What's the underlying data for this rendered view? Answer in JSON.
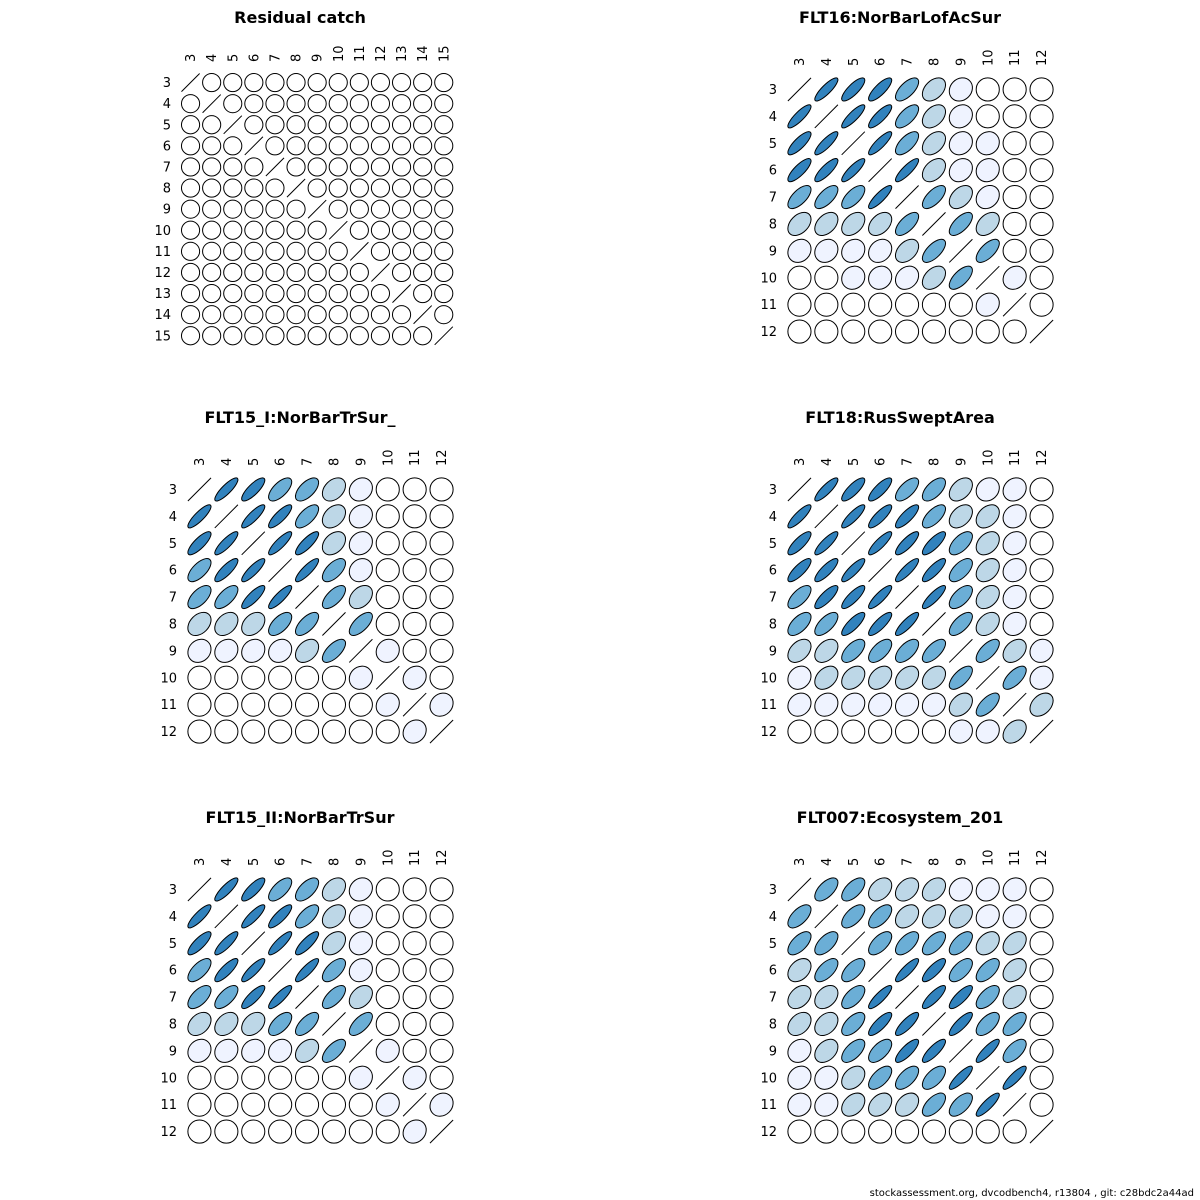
{
  "footer_text": "stockassessment.org, dvcodbench4, r13804 , git: c28bdc2a44ad",
  "palette": [
    "#ffffff",
    "#eff3ff",
    "#bdd7e7",
    "#6baed6",
    "#3182bd"
  ],
  "chart_data": [
    {
      "type": "correlation-ellipse-matrix",
      "title": "Residual catch",
      "labels": [
        "3",
        "4",
        "5",
        "6",
        "7",
        "8",
        "9",
        "10",
        "11",
        "12",
        "13",
        "14",
        "15"
      ],
      "values": [
        [
          1,
          0,
          0,
          0,
          0,
          0,
          0,
          0,
          0,
          0,
          0,
          0,
          0
        ],
        [
          0,
          1,
          0,
          0,
          0,
          0,
          0,
          0,
          0,
          0,
          0,
          0,
          0
        ],
        [
          0,
          0,
          1,
          0,
          0,
          0,
          0,
          0,
          0,
          0,
          0,
          0,
          0
        ],
        [
          0,
          0,
          0,
          1,
          0,
          0,
          0,
          0,
          0,
          0,
          0,
          0,
          0
        ],
        [
          0,
          0,
          0,
          0,
          1,
          0,
          0,
          0,
          0,
          0,
          0,
          0,
          0
        ],
        [
          0,
          0,
          0,
          0,
          0,
          1,
          0,
          0,
          0,
          0,
          0,
          0,
          0
        ],
        [
          0,
          0,
          0,
          0,
          0,
          0,
          1,
          0,
          0,
          0,
          0,
          0,
          0
        ],
        [
          0,
          0,
          0,
          0,
          0,
          0,
          0,
          1,
          0,
          0,
          0,
          0,
          0
        ],
        [
          0,
          0,
          0,
          0,
          0,
          0,
          0,
          0,
          1,
          0,
          0,
          0,
          0
        ],
        [
          0,
          0,
          0,
          0,
          0,
          0,
          0,
          0,
          0,
          1,
          0,
          0,
          0
        ],
        [
          0,
          0,
          0,
          0,
          0,
          0,
          0,
          0,
          0,
          0,
          1,
          0,
          0
        ],
        [
          0,
          0,
          0,
          0,
          0,
          0,
          0,
          0,
          0,
          0,
          0,
          1,
          0
        ],
        [
          0,
          0,
          0,
          0,
          0,
          0,
          0,
          0,
          0,
          0,
          0,
          0,
          1
        ]
      ]
    },
    {
      "type": "correlation-ellipse-matrix",
      "title": "FLT16:NorBarLofAcSur",
      "labels": [
        "3",
        "4",
        "5",
        "6",
        "7",
        "8",
        "9",
        "10",
        "11",
        "12"
      ],
      "values": [
        [
          1,
          0.85,
          0.8,
          0.8,
          0.65,
          0.4,
          0.15,
          0,
          0,
          0
        ],
        [
          0.85,
          1,
          0.85,
          0.82,
          0.65,
          0.4,
          0.15,
          0,
          0,
          0
        ],
        [
          0.8,
          0.85,
          1,
          0.85,
          0.65,
          0.4,
          0.15,
          0.1,
          0,
          0
        ],
        [
          0.8,
          0.82,
          0.85,
          1,
          0.85,
          0.4,
          0.2,
          0.1,
          0,
          0
        ],
        [
          0.65,
          0.65,
          0.65,
          0.85,
          1,
          0.65,
          0.4,
          0.2,
          0,
          0
        ],
        [
          0.4,
          0.4,
          0.4,
          0.4,
          0.65,
          1,
          0.65,
          0.4,
          0,
          0
        ],
        [
          0.15,
          0.15,
          0.15,
          0.2,
          0.4,
          0.65,
          1,
          0.65,
          0,
          0
        ],
        [
          0,
          0,
          0.1,
          0.1,
          0.2,
          0.4,
          0.65,
          1,
          0.15,
          0
        ],
        [
          0,
          0,
          0,
          0,
          0,
          0,
          0,
          0.15,
          1,
          0
        ],
        [
          0,
          0,
          0,
          0,
          0,
          0,
          0,
          0,
          0,
          1
        ]
      ]
    },
    {
      "type": "correlation-ellipse-matrix",
      "title": "FLT15_I:NorBarTrSur_",
      "labels": [
        "3",
        "4",
        "5",
        "6",
        "7",
        "8",
        "9",
        "10",
        "11",
        "12"
      ],
      "values": [
        [
          1,
          0.85,
          0.8,
          0.65,
          0.6,
          0.35,
          0.15,
          0,
          0,
          0
        ],
        [
          0.85,
          1,
          0.85,
          0.82,
          0.65,
          0.35,
          0.15,
          0,
          0,
          0
        ],
        [
          0.8,
          0.85,
          1,
          0.85,
          0.82,
          0.35,
          0.15,
          0,
          0,
          0
        ],
        [
          0.65,
          0.82,
          0.85,
          1,
          0.85,
          0.6,
          0.15,
          0,
          0,
          0
        ],
        [
          0.6,
          0.65,
          0.82,
          0.85,
          1,
          0.65,
          0.35,
          0,
          0,
          0
        ],
        [
          0.35,
          0.35,
          0.35,
          0.6,
          0.65,
          1,
          0.65,
          0,
          0,
          0
        ],
        [
          0.15,
          0.15,
          0.15,
          0.15,
          0.35,
          0.65,
          1,
          0.1,
          0,
          0
        ],
        [
          0,
          0,
          0,
          0,
          0,
          0,
          0.1,
          1,
          0.15,
          0
        ],
        [
          0,
          0,
          0,
          0,
          0,
          0,
          0,
          0.15,
          1,
          0.15
        ],
        [
          0,
          0,
          0,
          0,
          0,
          0,
          0,
          0,
          0.15,
          1
        ]
      ]
    },
    {
      "type": "correlation-ellipse-matrix",
      "title": "FLT18:RusSweptArea",
      "labels": [
        "3",
        "4",
        "5",
        "6",
        "7",
        "8",
        "9",
        "10",
        "11",
        "12"
      ],
      "values": [
        [
          1,
          0.85,
          0.8,
          0.8,
          0.65,
          0.6,
          0.4,
          0.15,
          0.15,
          0
        ],
        [
          0.85,
          1,
          0.85,
          0.82,
          0.8,
          0.65,
          0.4,
          0.35,
          0.15,
          0
        ],
        [
          0.8,
          0.85,
          1,
          0.85,
          0.82,
          0.8,
          0.6,
          0.35,
          0.15,
          0
        ],
        [
          0.8,
          0.82,
          0.85,
          1,
          0.85,
          0.82,
          0.6,
          0.35,
          0.15,
          0
        ],
        [
          0.65,
          0.8,
          0.82,
          0.85,
          1,
          0.85,
          0.6,
          0.35,
          0.15,
          0
        ],
        [
          0.6,
          0.65,
          0.8,
          0.82,
          0.85,
          1,
          0.65,
          0.35,
          0.15,
          0
        ],
        [
          0.4,
          0.4,
          0.6,
          0.6,
          0.6,
          0.65,
          1,
          0.65,
          0.35,
          0.1
        ],
        [
          0.15,
          0.35,
          0.35,
          0.35,
          0.35,
          0.35,
          0.65,
          1,
          0.65,
          0.15
        ],
        [
          0.15,
          0.15,
          0.15,
          0.15,
          0.15,
          0.15,
          0.35,
          0.65,
          1,
          0.35
        ],
        [
          0,
          0,
          0,
          0,
          0,
          0,
          0.1,
          0.15,
          0.35,
          1
        ]
      ]
    },
    {
      "type": "correlation-ellipse-matrix",
      "title": "FLT15_II:NorBarTrSur",
      "labels": [
        "3",
        "4",
        "5",
        "6",
        "7",
        "8",
        "9",
        "10",
        "11",
        "12"
      ],
      "values": [
        [
          1,
          0.85,
          0.8,
          0.65,
          0.6,
          0.35,
          0.15,
          0,
          0,
          0
        ],
        [
          0.85,
          1,
          0.85,
          0.82,
          0.65,
          0.35,
          0.15,
          0,
          0,
          0
        ],
        [
          0.8,
          0.85,
          1,
          0.85,
          0.82,
          0.35,
          0.15,
          0,
          0,
          0
        ],
        [
          0.65,
          0.82,
          0.85,
          1,
          0.85,
          0.6,
          0.15,
          0,
          0,
          0
        ],
        [
          0.6,
          0.65,
          0.82,
          0.85,
          1,
          0.65,
          0.35,
          0,
          0,
          0
        ],
        [
          0.35,
          0.35,
          0.35,
          0.6,
          0.65,
          1,
          0.65,
          0,
          0,
          0
        ],
        [
          0.15,
          0.15,
          0.15,
          0.15,
          0.35,
          0.65,
          1,
          0.1,
          0,
          0
        ],
        [
          0,
          0,
          0,
          0,
          0,
          0,
          0.1,
          1,
          0.15,
          0
        ],
        [
          0,
          0,
          0,
          0,
          0,
          0,
          0,
          0.15,
          1,
          0.15
        ],
        [
          0,
          0,
          0,
          0,
          0,
          0,
          0,
          0,
          0.15,
          1
        ]
      ]
    },
    {
      "type": "correlation-ellipse-matrix",
      "title": "FLT007:Ecosystem_201",
      "labels": [
        "3",
        "4",
        "5",
        "6",
        "7",
        "8",
        "9",
        "10",
        "11",
        "12"
      ],
      "values": [
        [
          1,
          0.6,
          0.6,
          0.35,
          0.35,
          0.35,
          0.15,
          0.15,
          0.1,
          0
        ],
        [
          0.6,
          1,
          0.6,
          0.6,
          0.35,
          0.35,
          0.35,
          0.15,
          0.15,
          0
        ],
        [
          0.6,
          0.6,
          1,
          0.6,
          0.6,
          0.6,
          0.6,
          0.35,
          0.35,
          0
        ],
        [
          0.35,
          0.6,
          0.6,
          1,
          0.85,
          0.8,
          0.6,
          0.6,
          0.35,
          0
        ],
        [
          0.35,
          0.35,
          0.6,
          0.85,
          1,
          0.82,
          0.8,
          0.6,
          0.35,
          0
        ],
        [
          0.35,
          0.35,
          0.6,
          0.8,
          0.82,
          1,
          0.82,
          0.6,
          0.6,
          0
        ],
        [
          0.15,
          0.35,
          0.6,
          0.6,
          0.8,
          0.82,
          1,
          0.85,
          0.6,
          0
        ],
        [
          0.15,
          0.15,
          0.35,
          0.6,
          0.6,
          0.6,
          0.85,
          1,
          0.85,
          0
        ],
        [
          0.1,
          0.15,
          0.35,
          0.35,
          0.35,
          0.6,
          0.6,
          0.85,
          1,
          0
        ],
        [
          0,
          0,
          0,
          0,
          0,
          0,
          0,
          0,
          0,
          1
        ]
      ]
    }
  ]
}
